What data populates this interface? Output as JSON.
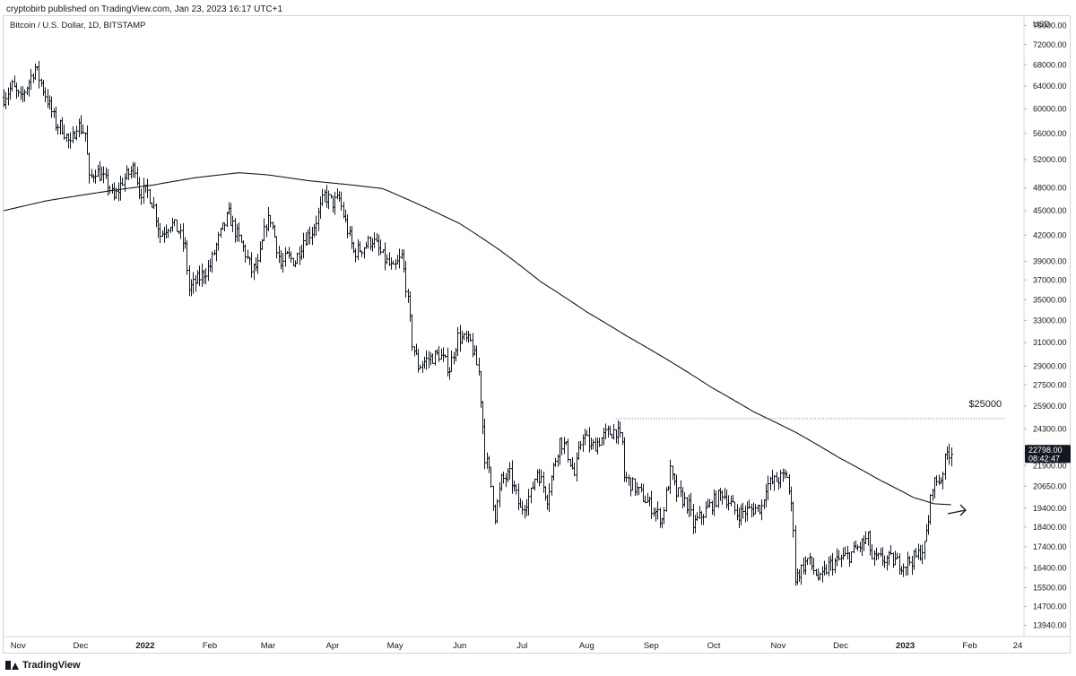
{
  "header": {
    "published": "cryptobirb published on TradingView.com, Jan 23, 2023 16:17 UTC+1"
  },
  "footer": {
    "brand": "TradingView"
  },
  "chart_data": {
    "type": "ohlc",
    "title": "Bitcoin / U.S. Dollar, 1D, BITSTAMP",
    "currency": "USD",
    "y_scale": "log",
    "ylim": [
      13500,
      78000
    ],
    "y_ticks": [
      76000,
      72000,
      68000,
      64000,
      60000,
      56000,
      52000,
      48000,
      45000,
      42000,
      39000,
      37000,
      35000,
      33000,
      31000,
      29000,
      27500,
      25900,
      24300,
      22700,
      21900,
      20650,
      19400,
      18400,
      17400,
      16400,
      15500,
      14700,
      13940
    ],
    "y_tick_labels": [
      "76000.00",
      "72000.00",
      "68000.00",
      "64000.00",
      "60000.00",
      "56000.00",
      "52000.00",
      "48000.00",
      "45000.00",
      "42000.00",
      "39000.00",
      "37000.00",
      "35000.00",
      "33000.00",
      "31000.00",
      "29000.00",
      "27500.00",
      "25900.00",
      "24300.00",
      "22700.00",
      "21900.00",
      "20650.00",
      "19400.00",
      "18400.00",
      "17400.00",
      "16400.00",
      "15500.00",
      "14700.00",
      "13940.00"
    ],
    "x_range": [
      "2021-10-25",
      "2023-02-27"
    ],
    "x_ticks": [
      {
        "date": "2021-11-01",
        "label": "Nov",
        "bold": false
      },
      {
        "date": "2021-12-01",
        "label": "Dec",
        "bold": false
      },
      {
        "date": "2022-01-01",
        "label": "2022",
        "bold": true
      },
      {
        "date": "2022-02-01",
        "label": "Feb",
        "bold": false
      },
      {
        "date": "2022-03-01",
        "label": "Mar",
        "bold": false
      },
      {
        "date": "2022-04-01",
        "label": "Apr",
        "bold": false
      },
      {
        "date": "2022-05-01",
        "label": "May",
        "bold": false
      },
      {
        "date": "2022-06-01",
        "label": "Jun",
        "bold": false
      },
      {
        "date": "2022-07-01",
        "label": "Jul",
        "bold": false
      },
      {
        "date": "2022-08-01",
        "label": "Aug",
        "bold": false
      },
      {
        "date": "2022-09-01",
        "label": "Sep",
        "bold": false
      },
      {
        "date": "2022-10-01",
        "label": "Oct",
        "bold": false
      },
      {
        "date": "2022-11-01",
        "label": "Nov",
        "bold": false
      },
      {
        "date": "2022-12-01",
        "label": "Dec",
        "bold": false
      },
      {
        "date": "2023-01-01",
        "label": "2023",
        "bold": true
      },
      {
        "date": "2023-02-01",
        "label": "Feb",
        "bold": false
      },
      {
        "date": "2023-02-24",
        "label": "24",
        "bold": false
      }
    ],
    "price_anchors": [
      [
        "2021-10-25",
        62000
      ],
      [
        "2021-10-29",
        64000
      ],
      [
        "2021-11-02",
        61500
      ],
      [
        "2021-11-09",
        67500
      ],
      [
        "2021-11-12",
        64500
      ],
      [
        "2021-11-19",
        57500
      ],
      [
        "2021-11-22",
        57000
      ],
      [
        "2021-11-26",
        54000
      ],
      [
        "2021-11-29",
        57500
      ],
      [
        "2021-12-03",
        56000
      ],
      [
        "2021-12-05",
        49000
      ],
      [
        "2021-12-08",
        50500
      ],
      [
        "2021-12-14",
        48500
      ],
      [
        "2021-12-17",
        46500
      ],
      [
        "2021-12-21",
        49000
      ],
      [
        "2021-12-27",
        51000
      ],
      [
        "2021-12-29",
        47500
      ],
      [
        "2022-01-02",
        47500
      ],
      [
        "2022-01-05",
        45500
      ],
      [
        "2022-01-08",
        42000
      ],
      [
        "2022-01-13",
        43500
      ],
      [
        "2022-01-17",
        42500
      ],
      [
        "2022-01-20",
        40500
      ],
      [
        "2022-01-22",
        36000
      ],
      [
        "2022-01-24",
        36500
      ],
      [
        "2022-01-28",
        37500
      ],
      [
        "2022-02-01",
        38500
      ],
      [
        "2022-02-05",
        41500
      ],
      [
        "2022-02-09",
        44000
      ],
      [
        "2022-02-10",
        44500
      ],
      [
        "2022-02-13",
        42500
      ],
      [
        "2022-02-17",
        40500
      ],
      [
        "2022-02-21",
        38000
      ],
      [
        "2022-02-24",
        38500
      ],
      [
        "2022-02-28",
        43500
      ],
      [
        "2022-03-02",
        44000
      ],
      [
        "2022-03-07",
        38500
      ],
      [
        "2022-03-10",
        39500
      ],
      [
        "2022-03-14",
        39000
      ],
      [
        "2022-03-18",
        41500
      ],
      [
        "2022-03-22",
        42500
      ],
      [
        "2022-03-25",
        44500
      ],
      [
        "2022-03-28",
        47000
      ],
      [
        "2022-04-01",
        46000
      ],
      [
        "2022-04-04",
        46500
      ],
      [
        "2022-04-07",
        43500
      ],
      [
        "2022-04-11",
        40000
      ],
      [
        "2022-04-15",
        40500
      ],
      [
        "2022-04-20",
        41500
      ],
      [
        "2022-04-25",
        39500
      ],
      [
        "2022-04-30",
        38000
      ],
      [
        "2022-05-04",
        39500
      ],
      [
        "2022-05-06",
        36500
      ],
      [
        "2022-05-09",
        31000
      ],
      [
        "2022-05-12",
        29000
      ],
      [
        "2022-05-16",
        29500
      ],
      [
        "2022-05-22",
        30000
      ],
      [
        "2022-05-27",
        28800
      ],
      [
        "2022-05-31",
        31500
      ],
      [
        "2022-06-06",
        31000
      ],
      [
        "2022-06-10",
        28500
      ],
      [
        "2022-06-13",
        22500
      ],
      [
        "2022-06-15",
        21500
      ],
      [
        "2022-06-18",
        19000
      ],
      [
        "2022-06-21",
        21000
      ],
      [
        "2022-06-25",
        21300
      ],
      [
        "2022-06-30",
        19300
      ],
      [
        "2022-07-05",
        20200
      ],
      [
        "2022-07-08",
        21600
      ],
      [
        "2022-07-13",
        20000
      ],
      [
        "2022-07-19",
        23500
      ],
      [
        "2022-07-22",
        23000
      ],
      [
        "2022-07-26",
        21300
      ],
      [
        "2022-07-30",
        24000
      ],
      [
        "2022-08-03",
        23000
      ],
      [
        "2022-08-10",
        23900
      ],
      [
        "2022-08-15",
        24200
      ],
      [
        "2022-08-18",
        23300
      ],
      [
        "2022-08-19",
        21200
      ],
      [
        "2022-08-26",
        20300
      ],
      [
        "2022-09-06",
        18800
      ],
      [
        "2022-09-10",
        21500
      ],
      [
        "2022-09-13",
        20200
      ],
      [
        "2022-09-14",
        20200
      ],
      [
        "2022-09-19",
        19500
      ],
      [
        "2022-09-21",
        18500
      ],
      [
        "2022-09-28",
        19400
      ],
      [
        "2022-10-05",
        20300
      ],
      [
        "2022-10-12",
        19100
      ],
      [
        "2022-10-18",
        19300
      ],
      [
        "2022-10-24",
        19500
      ],
      [
        "2022-10-26",
        20700
      ],
      [
        "2022-11-05",
        21300
      ],
      [
        "2022-11-08",
        18500
      ],
      [
        "2022-11-09",
        15900
      ],
      [
        "2022-11-15",
        16800
      ],
      [
        "2022-11-21",
        15800
      ],
      [
        "2022-11-25",
        16500
      ],
      [
        "2022-12-05",
        17000
      ],
      [
        "2022-12-14",
        17800
      ],
      [
        "2022-12-16",
        16800
      ],
      [
        "2022-12-24",
        16800
      ],
      [
        "2022-12-31",
        16550
      ],
      [
        "2023-01-06",
        16900
      ],
      [
        "2023-01-10",
        17400
      ],
      [
        "2023-01-12",
        18800
      ],
      [
        "2023-01-14",
        20800
      ],
      [
        "2023-01-18",
        21100
      ],
      [
        "2023-01-21",
        22700
      ],
      [
        "2023-01-23",
        22798
      ]
    ],
    "ma_anchors": [
      [
        "2021-10-25",
        45000
      ],
      [
        "2021-11-15",
        46300
      ],
      [
        "2021-12-01",
        47000
      ],
      [
        "2021-12-15",
        47600
      ],
      [
        "2022-01-05",
        48400
      ],
      [
        "2022-01-25",
        49400
      ],
      [
        "2022-02-15",
        50100
      ],
      [
        "2022-03-01",
        49800
      ],
      [
        "2022-03-20",
        49000
      ],
      [
        "2022-04-10",
        48400
      ],
      [
        "2022-04-25",
        47900
      ],
      [
        "2022-05-10",
        46100
      ],
      [
        "2022-06-01",
        43400
      ],
      [
        "2022-06-20",
        40300
      ],
      [
        "2022-07-10",
        36800
      ],
      [
        "2022-08-01",
        33800
      ],
      [
        "2022-08-20",
        31600
      ],
      [
        "2022-09-10",
        29400
      ],
      [
        "2022-09-30",
        27300
      ],
      [
        "2022-10-20",
        25500
      ],
      [
        "2022-11-10",
        24000
      ],
      [
        "2022-11-30",
        22400
      ],
      [
        "2022-12-20",
        21000
      ],
      [
        "2023-01-05",
        20000
      ],
      [
        "2023-01-15",
        19650
      ],
      [
        "2023-01-23",
        19600
      ]
    ],
    "horizontal_level": {
      "value": 25000,
      "from": "2022-08-15",
      "to": "2023-02-18",
      "label": "$25000"
    },
    "last_price": {
      "value": "22798.00",
      "countdown": "08:42:47"
    },
    "annotation": {
      "type": "arrow",
      "date": "2023-01-30",
      "value": 19300
    }
  }
}
